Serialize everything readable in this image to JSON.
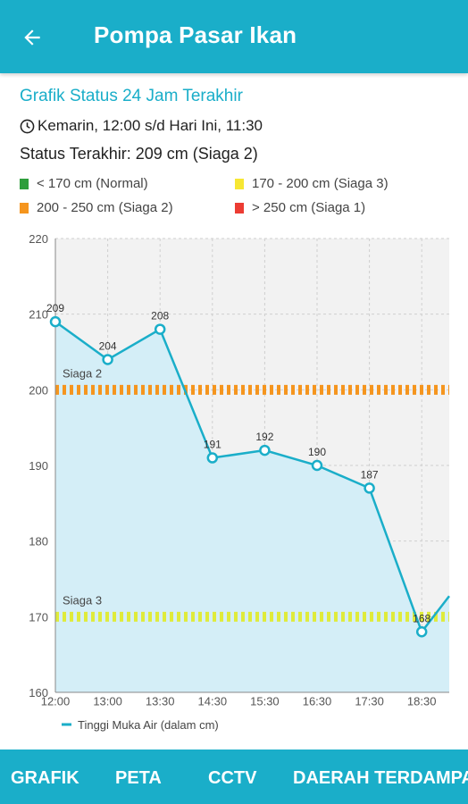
{
  "appbar": {
    "title": "Pompa Pasar Ikan",
    "back_icon": "arrow-left-icon"
  },
  "header": {
    "chart_title": "Grafik Status 24 Jam Terakhir",
    "clock_icon": "clock-icon",
    "range": "Kemarin, 12:00 s/d Hari Ini, 11:30",
    "status": "Status Terakhir: 209 cm (Siaga 2)"
  },
  "legend": [
    {
      "label": "< 170 cm (Normal)",
      "color": "#2e9e3c"
    },
    {
      "label": "170 - 200 cm (Siaga 3)",
      "color": "#f7e733"
    },
    {
      "label": "200 - 250 cm (Siaga 2)",
      "color": "#f5951e"
    },
    {
      "label": "> 250 cm (Siaga 1)",
      "color": "#ec3c33"
    }
  ],
  "bottom_nav": {
    "tabs": [
      {
        "label": "GRAFIK"
      },
      {
        "label": "PETA"
      },
      {
        "label": "CCTV"
      },
      {
        "label": "DAERAH TERDAMPAK"
      }
    ]
  },
  "chart_data": {
    "type": "area",
    "categories": [
      "12:00",
      "13:00",
      "13:30",
      "14:30",
      "15:30",
      "16:30",
      "17:30",
      "18:30",
      ""
    ],
    "series": [
      {
        "name": "Tinggi Muka Air (dalam cm)",
        "values": [
          209,
          204,
          208,
          191,
          192,
          190,
          187,
          168,
          177
        ],
        "labels": [
          "209",
          "204",
          "208",
          "191",
          "192",
          "190",
          "187",
          "168",
          ""
        ],
        "color": "#1aaec9",
        "fill": "#d4eef7"
      }
    ],
    "ylim": [
      160,
      220
    ],
    "yticks": [
      160,
      170,
      180,
      190,
      200,
      210,
      220
    ],
    "reference_lines": [
      {
        "label": "Siaga 2",
        "value": 200,
        "color": "#f5951e"
      },
      {
        "label": "Siaga 3",
        "value": 170,
        "color": "#dfeb3a"
      }
    ],
    "grid": true,
    "plot_bg": "#f2f2f2",
    "legend_position": "bottom-left"
  }
}
